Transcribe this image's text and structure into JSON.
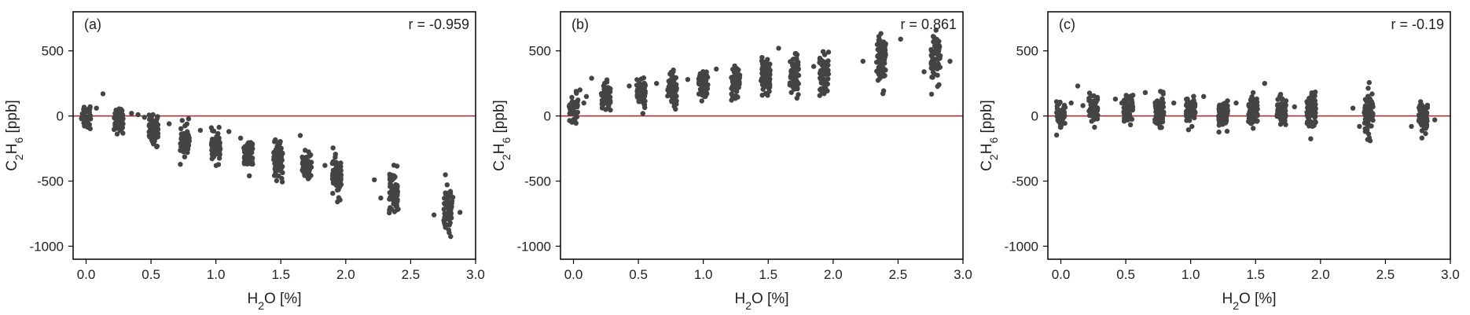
{
  "figure": {
    "xlabel_base": "H",
    "xlabel_sub": "2",
    "xlabel_rest": "O [%]",
    "ylabel_base": "C",
    "ylabel_sub1": "2",
    "ylabel_mid": "H",
    "ylabel_sub2": "6",
    "ylabel_rest": " [ppb]"
  },
  "colors": {
    "points": "#444444",
    "zero_line": "#b22222",
    "axes": "#000000"
  },
  "chart_data": [
    {
      "type": "scatter",
      "panel_label": "(a)",
      "r_label": "r = -0.959",
      "xlim": [
        -0.1,
        3.0
      ],
      "ylim": [
        -1100,
        800
      ],
      "xticks": [
        "0.0",
        "0.5",
        "1.0",
        "1.5",
        "2.0",
        "2.5",
        "3.0"
      ],
      "yticks": [
        "-1000",
        "-500",
        "0",
        "500"
      ],
      "reference_line_y": 0,
      "clusters": [
        {
          "x": 0.0,
          "mean": 0,
          "sd": 55,
          "n": 40
        },
        {
          "x": 0.25,
          "mean": -30,
          "sd": 45,
          "n": 60
        },
        {
          "x": 0.52,
          "mean": -110,
          "sd": 55,
          "n": 70
        },
        {
          "x": 0.76,
          "mean": -180,
          "sd": 55,
          "n": 70
        },
        {
          "x": 1.0,
          "mean": -240,
          "sd": 55,
          "n": 70
        },
        {
          "x": 1.25,
          "mean": -300,
          "sd": 55,
          "n": 70
        },
        {
          "x": 1.48,
          "mean": -340,
          "sd": 65,
          "n": 70
        },
        {
          "x": 1.7,
          "mean": -390,
          "sd": 60,
          "n": 70
        },
        {
          "x": 1.93,
          "mean": -460,
          "sd": 70,
          "n": 70
        },
        {
          "x": 2.37,
          "mean": -590,
          "sd": 85,
          "n": 70
        },
        {
          "x": 2.79,
          "mean": -720,
          "sd": 85,
          "n": 60
        }
      ],
      "extra_points": [
        [
          0.13,
          170
        ],
        [
          0.08,
          60
        ],
        [
          0.35,
          20
        ],
        [
          0.4,
          10
        ],
        [
          0.45,
          -10
        ],
        [
          0.64,
          -60
        ],
        [
          0.88,
          -110
        ],
        [
          1.1,
          -120
        ],
        [
          1.19,
          -170
        ],
        [
          1.65,
          -150
        ],
        [
          1.84,
          -380
        ],
        [
          2.22,
          -490
        ],
        [
          2.27,
          -630
        ],
        [
          2.68,
          -760
        ],
        [
          2.88,
          -740
        ]
      ]
    },
    {
      "type": "scatter",
      "panel_label": "(b)",
      "r_label": "r = 0.861",
      "xlim": [
        -0.1,
        3.0
      ],
      "ylim": [
        -1100,
        800
      ],
      "xticks": [
        "0.0",
        "0.5",
        "1.0",
        "1.5",
        "2.0",
        "2.5",
        "3.0"
      ],
      "yticks": [
        "-1000",
        "-500",
        "0",
        "500"
      ],
      "reference_line_y": 0,
      "clusters": [
        {
          "x": 0.0,
          "mean": 60,
          "sd": 55,
          "n": 40
        },
        {
          "x": 0.25,
          "mean": 150,
          "sd": 50,
          "n": 60
        },
        {
          "x": 0.52,
          "mean": 190,
          "sd": 60,
          "n": 70
        },
        {
          "x": 0.76,
          "mean": 210,
          "sd": 60,
          "n": 70
        },
        {
          "x": 1.0,
          "mean": 230,
          "sd": 60,
          "n": 70
        },
        {
          "x": 1.25,
          "mean": 240,
          "sd": 65,
          "n": 70
        },
        {
          "x": 1.48,
          "mean": 300,
          "sd": 70,
          "n": 70
        },
        {
          "x": 1.7,
          "mean": 320,
          "sd": 70,
          "n": 70
        },
        {
          "x": 1.93,
          "mean": 330,
          "sd": 75,
          "n": 70
        },
        {
          "x": 2.37,
          "mean": 420,
          "sd": 95,
          "n": 70
        },
        {
          "x": 2.79,
          "mean": 450,
          "sd": 100,
          "n": 60
        }
      ],
      "extra_points": [
        [
          0.05,
          200
        ],
        [
          0.1,
          150
        ],
        [
          0.14,
          290
        ],
        [
          0.08,
          100
        ],
        [
          0.43,
          230
        ],
        [
          0.64,
          250
        ],
        [
          0.88,
          280
        ],
        [
          1.1,
          360
        ],
        [
          1.58,
          520
        ],
        [
          1.85,
          380
        ],
        [
          2.23,
          420
        ],
        [
          2.52,
          590
        ],
        [
          2.7,
          340
        ],
        [
          2.9,
          420
        ]
      ]
    },
    {
      "type": "scatter",
      "panel_label": "(c)",
      "r_label": "r = -0.19",
      "xlim": [
        -0.1,
        3.0
      ],
      "ylim": [
        -1100,
        800
      ],
      "xticks": [
        "0.0",
        "0.5",
        "1.0",
        "1.5",
        "2.0",
        "2.5",
        "3.0"
      ],
      "yticks": [
        "-1000",
        "-500",
        "0",
        "500"
      ],
      "reference_line_y": 0,
      "clusters": [
        {
          "x": 0.0,
          "mean": 20,
          "sd": 50,
          "n": 40
        },
        {
          "x": 0.25,
          "mean": 60,
          "sd": 50,
          "n": 60
        },
        {
          "x": 0.52,
          "mean": 50,
          "sd": 55,
          "n": 70
        },
        {
          "x": 0.76,
          "mean": 40,
          "sd": 55,
          "n": 70
        },
        {
          "x": 1.0,
          "mean": 30,
          "sd": 55,
          "n": 70
        },
        {
          "x": 1.25,
          "mean": 10,
          "sd": 55,
          "n": 70
        },
        {
          "x": 1.48,
          "mean": 30,
          "sd": 60,
          "n": 70
        },
        {
          "x": 1.7,
          "mean": 40,
          "sd": 60,
          "n": 70
        },
        {
          "x": 1.93,
          "mean": 20,
          "sd": 65,
          "n": 70
        },
        {
          "x": 2.37,
          "mean": -10,
          "sd": 85,
          "n": 70
        },
        {
          "x": 2.79,
          "mean": 0,
          "sd": 80,
          "n": 60
        }
      ],
      "extra_points": [
        [
          0.08,
          100
        ],
        [
          0.13,
          230
        ],
        [
          0.17,
          80
        ],
        [
          0.42,
          130
        ],
        [
          0.47,
          100
        ],
        [
          0.65,
          180
        ],
        [
          0.87,
          100
        ],
        [
          1.1,
          150
        ],
        [
          1.35,
          100
        ],
        [
          1.57,
          250
        ],
        [
          1.8,
          70
        ],
        [
          2.25,
          60
        ],
        [
          2.3,
          -80
        ],
        [
          2.7,
          -80
        ],
        [
          2.88,
          -30
        ]
      ]
    }
  ]
}
